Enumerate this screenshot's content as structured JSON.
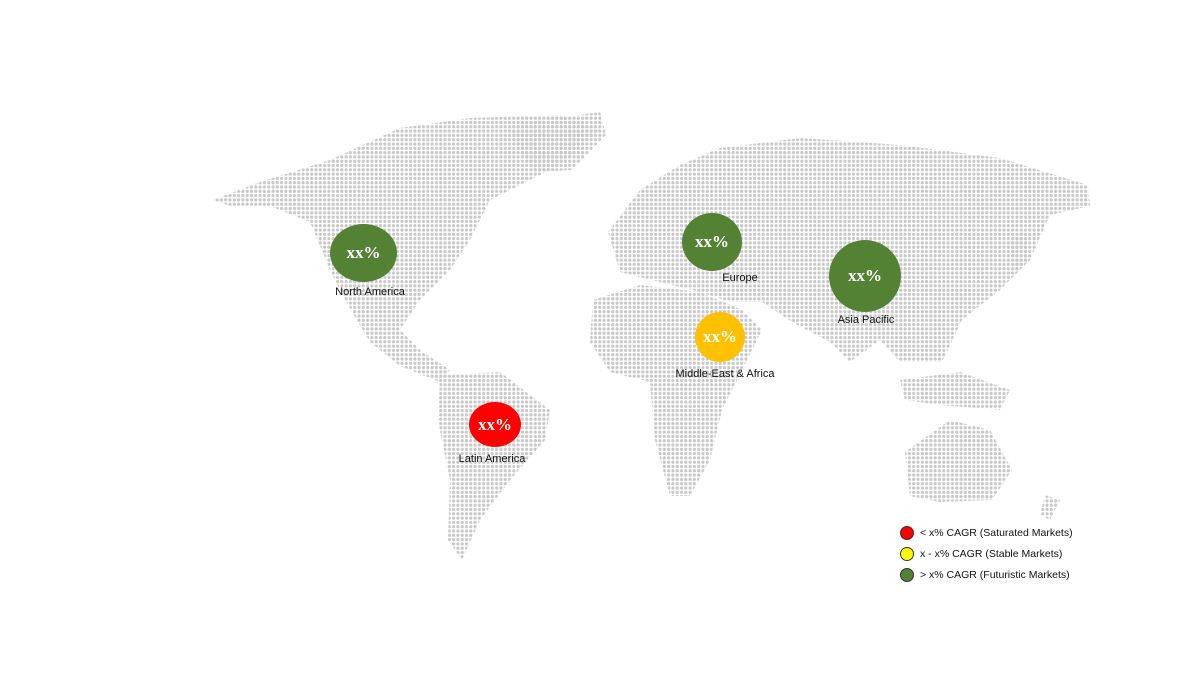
{
  "regions": [
    {
      "name": "North America",
      "value": "xx%",
      "color": "#548235"
    },
    {
      "name": "Europe",
      "value": "xx%",
      "color": "#548235"
    },
    {
      "name": "Asia Pacific",
      "value": "xx%",
      "color": "#548235"
    },
    {
      "name": "Middle-East & Africa",
      "value": "xx%",
      "color": "#FFC000"
    },
    {
      "name": "Latin America",
      "value": "xx%",
      "color": "#FF0000"
    }
  ],
  "legend": [
    {
      "label": "< x% CAGR (Saturated Markets)",
      "color": "#FF0000"
    },
    {
      "label": "x - x% CAGR (Stable Markets)",
      "color": "#FFFF00"
    },
    {
      "label": "> x% CAGR (Futuristic Markets)",
      "color": "#548235"
    }
  ],
  "map_dot_color": "#c8c8c8"
}
